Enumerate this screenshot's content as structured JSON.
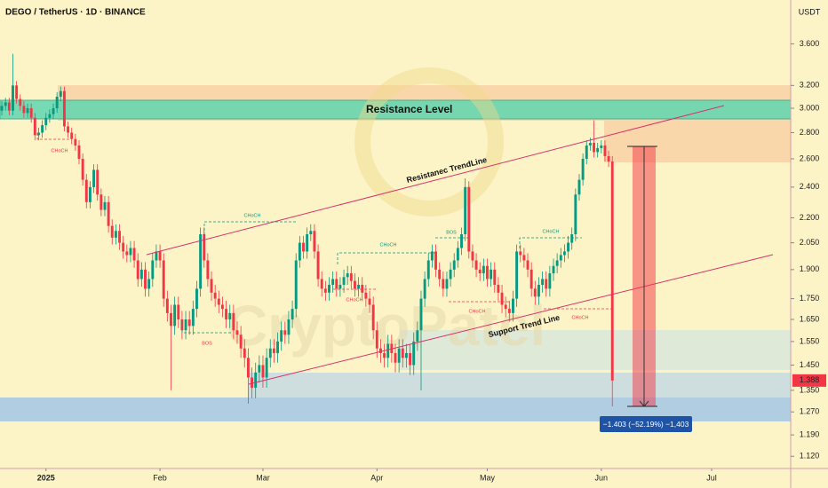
{
  "chart_data": {
    "type": "candlestick",
    "title": "DEGO / TetherUS · 1D · BINANCE",
    "currency": "USDT",
    "log_scale": true,
    "up_color": "#089981",
    "down_color": "#f23645",
    "xlim": [
      -0.5,
      214.5
    ],
    "ylim": [
      1.082,
      4.076
    ],
    "xticks": [
      {
        "value": 12,
        "label": "2025"
      },
      {
        "value": 43,
        "label": "Feb"
      },
      {
        "value": 71,
        "label": "Mar"
      },
      {
        "value": 102,
        "label": "Apr"
      },
      {
        "value": 132,
        "label": "May"
      },
      {
        "value": 163,
        "label": "Jun"
      },
      {
        "value": 193,
        "label": "Jul"
      }
    ],
    "yticks": [
      {
        "value": 3.6,
        "label": "3.600"
      },
      {
        "value": 3.2,
        "label": "3.200"
      },
      {
        "value": 3.0,
        "label": "3.000"
      },
      {
        "value": 2.8,
        "label": "2.800"
      },
      {
        "value": 2.6,
        "label": "2.600"
      },
      {
        "value": 2.4,
        "label": "2.400"
      },
      {
        "value": 2.2,
        "label": "2.200"
      },
      {
        "value": 2.05,
        "label": "2.050"
      },
      {
        "value": 1.9,
        "label": "1.900"
      },
      {
        "value": 1.75,
        "label": "1.750"
      },
      {
        "value": 1.65,
        "label": "1.650"
      },
      {
        "value": 1.55,
        "label": "1.550"
      },
      {
        "value": 1.45,
        "label": "1.450"
      },
      {
        "value": 1.35,
        "label": "1.350"
      },
      {
        "value": 1.27,
        "label": "1.270"
      },
      {
        "value": 1.19,
        "label": "1.190"
      },
      {
        "value": 1.12,
        "label": "1.120"
      }
    ],
    "open": [
      2.98,
      3.02,
      3.05,
      2.98,
      3.2,
      3.08,
      3.02,
      2.96,
      3.0,
      2.92,
      2.78,
      2.8,
      2.86,
      2.92,
      2.95,
      3.0,
      3.1,
      3.15,
      2.85,
      2.8,
      2.75,
      2.7,
      2.6,
      2.45,
      2.3,
      2.4,
      2.52,
      2.35,
      2.25,
      2.3,
      2.15,
      2.08,
      2.12,
      2.05,
      2.0,
      1.98,
      2.02,
      1.95,
      1.85,
      1.9,
      1.8,
      1.85,
      1.95,
      2.0,
      1.95,
      1.75,
      1.68,
      1.62,
      1.72,
      1.65,
      1.6,
      1.65,
      1.62,
      1.7,
      1.8,
      2.1,
      1.95,
      1.85,
      1.78,
      1.75,
      1.72,
      1.7,
      1.65,
      1.68,
      1.6,
      1.58,
      1.52,
      1.48,
      1.4,
      1.36,
      1.42,
      1.45,
      1.4,
      1.48,
      1.52,
      1.5,
      1.55,
      1.6,
      1.58,
      1.65,
      1.7,
      1.95,
      2.05,
      2.0,
      2.1,
      2.12,
      2.0,
      1.85,
      1.8,
      1.78,
      1.82,
      1.85,
      1.8,
      1.82,
      1.86,
      1.88,
      1.84,
      1.8,
      1.82,
      1.78,
      1.75,
      1.72,
      1.6,
      1.52,
      1.5,
      1.48,
      1.54,
      1.5,
      1.46,
      1.52,
      1.48,
      1.5,
      1.45,
      1.55,
      1.6,
      1.75,
      1.85,
      1.95,
      2.0,
      1.9,
      1.85,
      1.8,
      1.85,
      1.9,
      1.95,
      2.02,
      2.1,
      2.4,
      2.0,
      1.95,
      1.9,
      1.88,
      1.92,
      1.85,
      1.9,
      1.82,
      1.78,
      1.72,
      1.7,
      1.68,
      1.75,
      2.0,
      1.98,
      1.95,
      1.9,
      1.8,
      1.76,
      1.82,
      1.85,
      1.8,
      1.88,
      1.92,
      1.95,
      1.98,
      2.0,
      2.05,
      2.1,
      2.35,
      2.45,
      2.6,
      2.7,
      2.72,
      2.65,
      2.68,
      2.7,
      2.62,
      2.58
    ],
    "high": [
      3.06,
      3.09,
      3.09,
      3.5,
      3.24,
      3.12,
      3.06,
      3.04,
      3.04,
      2.96,
      2.84,
      2.9,
      2.96,
      2.99,
      3.04,
      3.14,
      3.19,
      3.19,
      2.89,
      2.84,
      2.79,
      2.74,
      2.64,
      2.49,
      2.44,
      2.56,
      2.56,
      2.39,
      2.34,
      2.34,
      2.19,
      2.16,
      2.16,
      2.09,
      2.04,
      2.06,
      2.06,
      1.99,
      1.94,
      1.94,
      1.89,
      1.99,
      2.04,
      2.04,
      1.99,
      1.79,
      1.72,
      1.76,
      1.76,
      1.69,
      1.69,
      1.69,
      1.74,
      1.84,
      2.14,
      2.14,
      1.99,
      1.89,
      1.82,
      1.79,
      1.76,
      1.74,
      1.72,
      1.72,
      1.64,
      1.62,
      1.56,
      1.52,
      1.44,
      1.46,
      1.49,
      1.49,
      1.52,
      1.56,
      1.56,
      1.59,
      1.64,
      1.64,
      1.69,
      1.74,
      1.99,
      2.09,
      2.09,
      2.14,
      2.16,
      2.16,
      2.04,
      1.89,
      1.84,
      1.86,
      1.89,
      1.89,
      1.86,
      1.9,
      1.92,
      1.92,
      1.88,
      1.86,
      1.86,
      1.82,
      1.79,
      1.76,
      1.64,
      1.56,
      1.54,
      1.58,
      1.58,
      1.54,
      1.56,
      1.56,
      1.54,
      1.54,
      1.59,
      1.64,
      1.79,
      1.89,
      1.99,
      2.04,
      2.04,
      1.94,
      1.89,
      1.89,
      1.94,
      1.99,
      2.06,
      2.14,
      2.46,
      2.44,
      2.04,
      1.99,
      1.94,
      1.96,
      1.96,
      1.94,
      1.94,
      1.86,
      1.82,
      1.76,
      1.74,
      1.79,
      2.04,
      2.04,
      2.02,
      1.99,
      1.94,
      1.84,
      1.86,
      1.89,
      1.89,
      1.92,
      1.96,
      1.99,
      2.02,
      2.04,
      2.09,
      2.14,
      2.39,
      2.49,
      2.64,
      2.74,
      2.76,
      2.9,
      2.72,
      2.74,
      2.74,
      2.66,
      2.62
    ],
    "low": [
      2.94,
      2.98,
      2.94,
      2.94,
      3.04,
      2.98,
      2.92,
      2.92,
      2.88,
      2.74,
      2.74,
      2.76,
      2.82,
      2.88,
      2.91,
      2.96,
      3.06,
      2.81,
      2.76,
      2.71,
      2.66,
      2.56,
      2.41,
      2.26,
      2.26,
      2.36,
      2.31,
      2.21,
      2.21,
      2.11,
      2.04,
      2.04,
      2.01,
      1.96,
      1.94,
      1.94,
      1.91,
      1.81,
      1.81,
      1.76,
      1.76,
      1.81,
      1.91,
      1.91,
      1.71,
      1.64,
      1.35,
      1.58,
      1.61,
      1.56,
      1.56,
      1.58,
      1.58,
      1.66,
      1.76,
      1.91,
      1.81,
      1.74,
      1.71,
      1.68,
      1.66,
      1.61,
      1.61,
      1.56,
      1.54,
      1.48,
      1.44,
      1.3,
      1.32,
      1.32,
      1.38,
      1.36,
      1.36,
      1.44,
      1.46,
      1.46,
      1.51,
      1.54,
      1.54,
      1.61,
      1.66,
      1.91,
      1.96,
      1.96,
      2.06,
      1.96,
      1.81,
      1.76,
      1.74,
      1.74,
      1.78,
      1.76,
      1.76,
      1.78,
      1.82,
      1.8,
      1.76,
      1.76,
      1.74,
      1.71,
      1.68,
      1.56,
      1.48,
      1.46,
      1.44,
      1.44,
      1.46,
      1.42,
      1.42,
      1.44,
      1.44,
      1.41,
      1.41,
      1.51,
      1.35,
      1.71,
      1.81,
      1.91,
      1.86,
      1.81,
      1.76,
      1.76,
      1.81,
      1.86,
      1.91,
      1.98,
      2.06,
      1.96,
      1.91,
      1.86,
      1.84,
      1.84,
      1.81,
      1.81,
      1.78,
      1.74,
      1.68,
      1.66,
      1.64,
      1.64,
      1.71,
      1.94,
      1.91,
      1.86,
      1.76,
      1.72,
      1.72,
      1.78,
      1.76,
      1.76,
      1.84,
      1.88,
      1.91,
      1.94,
      1.96,
      2.01,
      2.06,
      2.31,
      2.41,
      2.56,
      2.66,
      2.61,
      2.61,
      2.64,
      2.58,
      2.54,
      1.29
    ],
    "close": [
      3.02,
      3.05,
      2.98,
      3.2,
      3.08,
      3.02,
      2.96,
      3.0,
      2.92,
      2.78,
      2.8,
      2.86,
      2.92,
      2.95,
      3.0,
      3.1,
      3.15,
      2.85,
      2.8,
      2.75,
      2.7,
      2.6,
      2.45,
      2.3,
      2.4,
      2.52,
      2.35,
      2.25,
      2.3,
      2.15,
      2.08,
      2.12,
      2.05,
      2.0,
      1.98,
      2.02,
      1.95,
      1.85,
      1.9,
      1.8,
      1.85,
      1.95,
      2.0,
      1.95,
      1.75,
      1.68,
      1.62,
      1.72,
      1.65,
      1.6,
      1.65,
      1.62,
      1.7,
      1.8,
      2.1,
      1.95,
      1.85,
      1.78,
      1.75,
      1.72,
      1.7,
      1.65,
      1.68,
      1.6,
      1.58,
      1.52,
      1.48,
      1.4,
      1.36,
      1.42,
      1.45,
      1.4,
      1.48,
      1.52,
      1.5,
      1.55,
      1.6,
      1.58,
      1.65,
      1.7,
      1.95,
      2.05,
      2.0,
      2.1,
      2.12,
      2.0,
      1.85,
      1.8,
      1.78,
      1.82,
      1.85,
      1.8,
      1.82,
      1.86,
      1.88,
      1.84,
      1.8,
      1.82,
      1.78,
      1.75,
      1.72,
      1.6,
      1.52,
      1.5,
      1.48,
      1.54,
      1.5,
      1.46,
      1.52,
      1.48,
      1.5,
      1.45,
      1.55,
      1.6,
      1.75,
      1.85,
      1.95,
      2.0,
      1.9,
      1.85,
      1.8,
      1.85,
      1.9,
      1.95,
      2.02,
      2.1,
      2.4,
      2.0,
      1.95,
      1.9,
      1.88,
      1.92,
      1.85,
      1.9,
      1.82,
      1.78,
      1.72,
      1.7,
      1.68,
      1.75,
      2.0,
      1.98,
      1.95,
      1.9,
      1.8,
      1.76,
      1.82,
      1.85,
      1.8,
      1.88,
      1.92,
      1.95,
      1.98,
      2.0,
      2.05,
      2.1,
      2.35,
      2.45,
      2.6,
      2.7,
      2.72,
      2.65,
      2.68,
      2.7,
      2.62,
      2.58,
      1.388
    ],
    "zone_label": "Resistance Level",
    "trendline_labels": [
      "Resistanec TrendLine",
      "Support Trend Line"
    ],
    "markers": [
      "CHoCH",
      "BOS",
      "CHoCH",
      "CHoCH",
      "BOS",
      "CHoCH",
      "CHoCH",
      "CHoCH",
      "CHoCH"
    ],
    "measure_label": "−1.403 (−52.19%) −1,403",
    "watermark": "CryptoPatel"
  }
}
